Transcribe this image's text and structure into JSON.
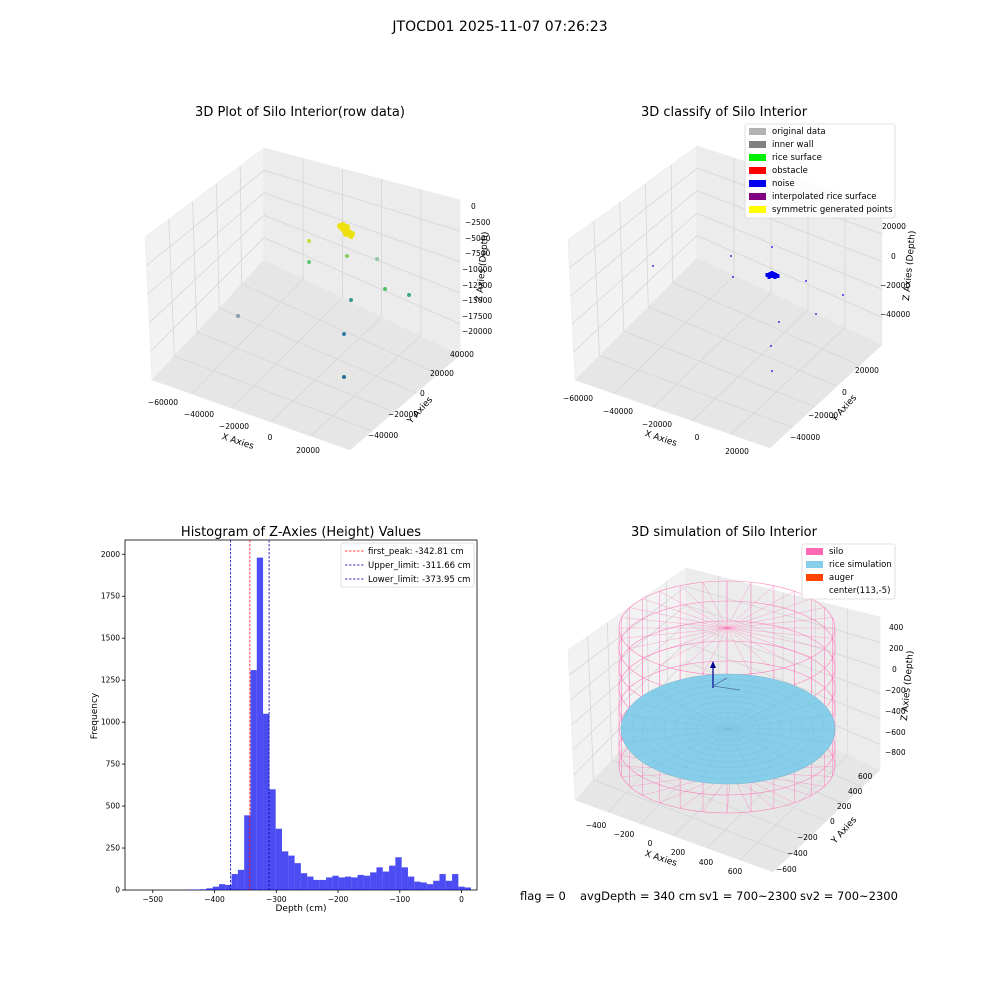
{
  "figure": {
    "suptitle": "JTOCD01 2025-11-07 07:26:23",
    "footer": {
      "flag": "flag = 0",
      "avg_depth": "avgDepth = 340 cm",
      "sv1": "sv1 = 700~2300",
      "sv2": "sv2 = 700~2300"
    }
  },
  "chart_data": [
    {
      "type": "scatter",
      "subtype": "3d",
      "title": "3D Plot of Silo Interior(row data)",
      "xlabel": "X Axies",
      "ylabel": "Y Axies",
      "zlabel": "Z Axies (Depth)",
      "xticks": [
        "−60000",
        "−40000",
        "−20000",
        "0",
        "20000"
      ],
      "yticks": [
        "−40000",
        "−20000",
        "0",
        "20000",
        "40000"
      ],
      "zticks": [
        "0",
        "−2500",
        "−5000",
        "−7500",
        "−10000",
        "−12500",
        "−15000",
        "−17500",
        "−20000"
      ],
      "grid": true,
      "colors": {
        "cluster": "#f0e00e",
        "points": [
          "#c8de3c",
          "#86cf5e",
          "#8ec99f",
          "#5ec572",
          "#4ebf6a",
          "#3aa889",
          "#3a9a8c",
          "#2f7fa8",
          "#8b9eaa",
          "#2a6d95"
        ]
      }
    },
    {
      "type": "scatter",
      "subtype": "3d",
      "title": "3D classify of Silo Interior",
      "xlabel": "X Axies",
      "ylabel": "Y Axies",
      "zlabel": "Z Axies (Depth)",
      "xticks": [
        "−60000",
        "−40000",
        "−20000",
        "0",
        "20000"
      ],
      "yticks": [
        "−40000",
        "−20000",
        "0",
        "20000"
      ],
      "zticks": [
        "20000",
        "0",
        "−20000",
        "−40000"
      ],
      "grid": true,
      "legend": {
        "position": "upper right",
        "entries": [
          {
            "label": "original data",
            "color": "#b2b2b2"
          },
          {
            "label": "inner wall",
            "color": "#808080"
          },
          {
            "label": "rice surface",
            "color": "#00ee00"
          },
          {
            "label": "obstacle",
            "color": "#ff0000"
          },
          {
            "label": "noise",
            "color": "#0000ee"
          },
          {
            "label": "interpolated rice surface",
            "color": "#800080"
          },
          {
            "label": "symmetric generated points",
            "color": "#ffff00"
          }
        ]
      }
    },
    {
      "type": "bar",
      "subtype": "histogram",
      "title": "Histogram of Z-Axies (Height) Values",
      "xlabel": "Depth (cm)",
      "ylabel": "Frequency",
      "xlim": [
        -545,
        25
      ],
      "ylim": [
        0,
        2085
      ],
      "xticks": [
        -500,
        -400,
        -300,
        -200,
        -100,
        0
      ],
      "yticks": [
        0,
        250,
        500,
        750,
        1000,
        1250,
        1500,
        1750,
        2000
      ],
      "bin_width": 10.2,
      "bin_start": -505,
      "counts": [
        0,
        0,
        0,
        0,
        0,
        0,
        3,
        3,
        4,
        10,
        20,
        35,
        30,
        95,
        120,
        445,
        1310,
        1980,
        1050,
        600,
        365,
        230,
        205,
        160,
        100,
        80,
        60,
        60,
        75,
        85,
        75,
        80,
        75,
        90,
        85,
        105,
        135,
        110,
        145,
        195,
        135,
        80,
        50,
        45,
        35,
        55,
        95,
        55,
        95,
        20,
        15
      ],
      "bar_color": "#0000ee",
      "lines": [
        {
          "name": "first_peak: -342.81 cm",
          "x": -342.81,
          "color": "#ff0000"
        },
        {
          "name": "Upper_limit: -311.66 cm",
          "x": -311.66,
          "color": "#0000aa"
        },
        {
          "name": "Lower_limit: -373.95 cm",
          "x": -373.95,
          "color": "#0000aa"
        }
      ],
      "legend": {
        "position": "upper right"
      },
      "grid": false
    },
    {
      "type": "scatter",
      "subtype": "3d-surface",
      "title": "3D simulation of Silo Interior",
      "xlabel": "X Axies",
      "ylabel": "Y Axies",
      "zlabel": "Z Axies (Depth)",
      "xticks": [
        "−400",
        "−200",
        "0",
        "200",
        "400",
        "600"
      ],
      "yticks": [
        "−600",
        "−400",
        "−200",
        "0",
        "200",
        "400",
        "600"
      ],
      "zticks": [
        "400",
        "200",
        "0",
        "−200",
        "−400",
        "−600",
        "−800"
      ],
      "grid": true,
      "legend": {
        "position": "upper right",
        "entries": [
          {
            "label": "silo",
            "color": "#ff69b4"
          },
          {
            "label": "rice simulation",
            "color": "#87ceeb"
          },
          {
            "label": "auger",
            "color": "#ff4500"
          },
          {
            "label": "center(113,-5)",
            "color": "#ffffff"
          }
        ]
      }
    }
  ]
}
